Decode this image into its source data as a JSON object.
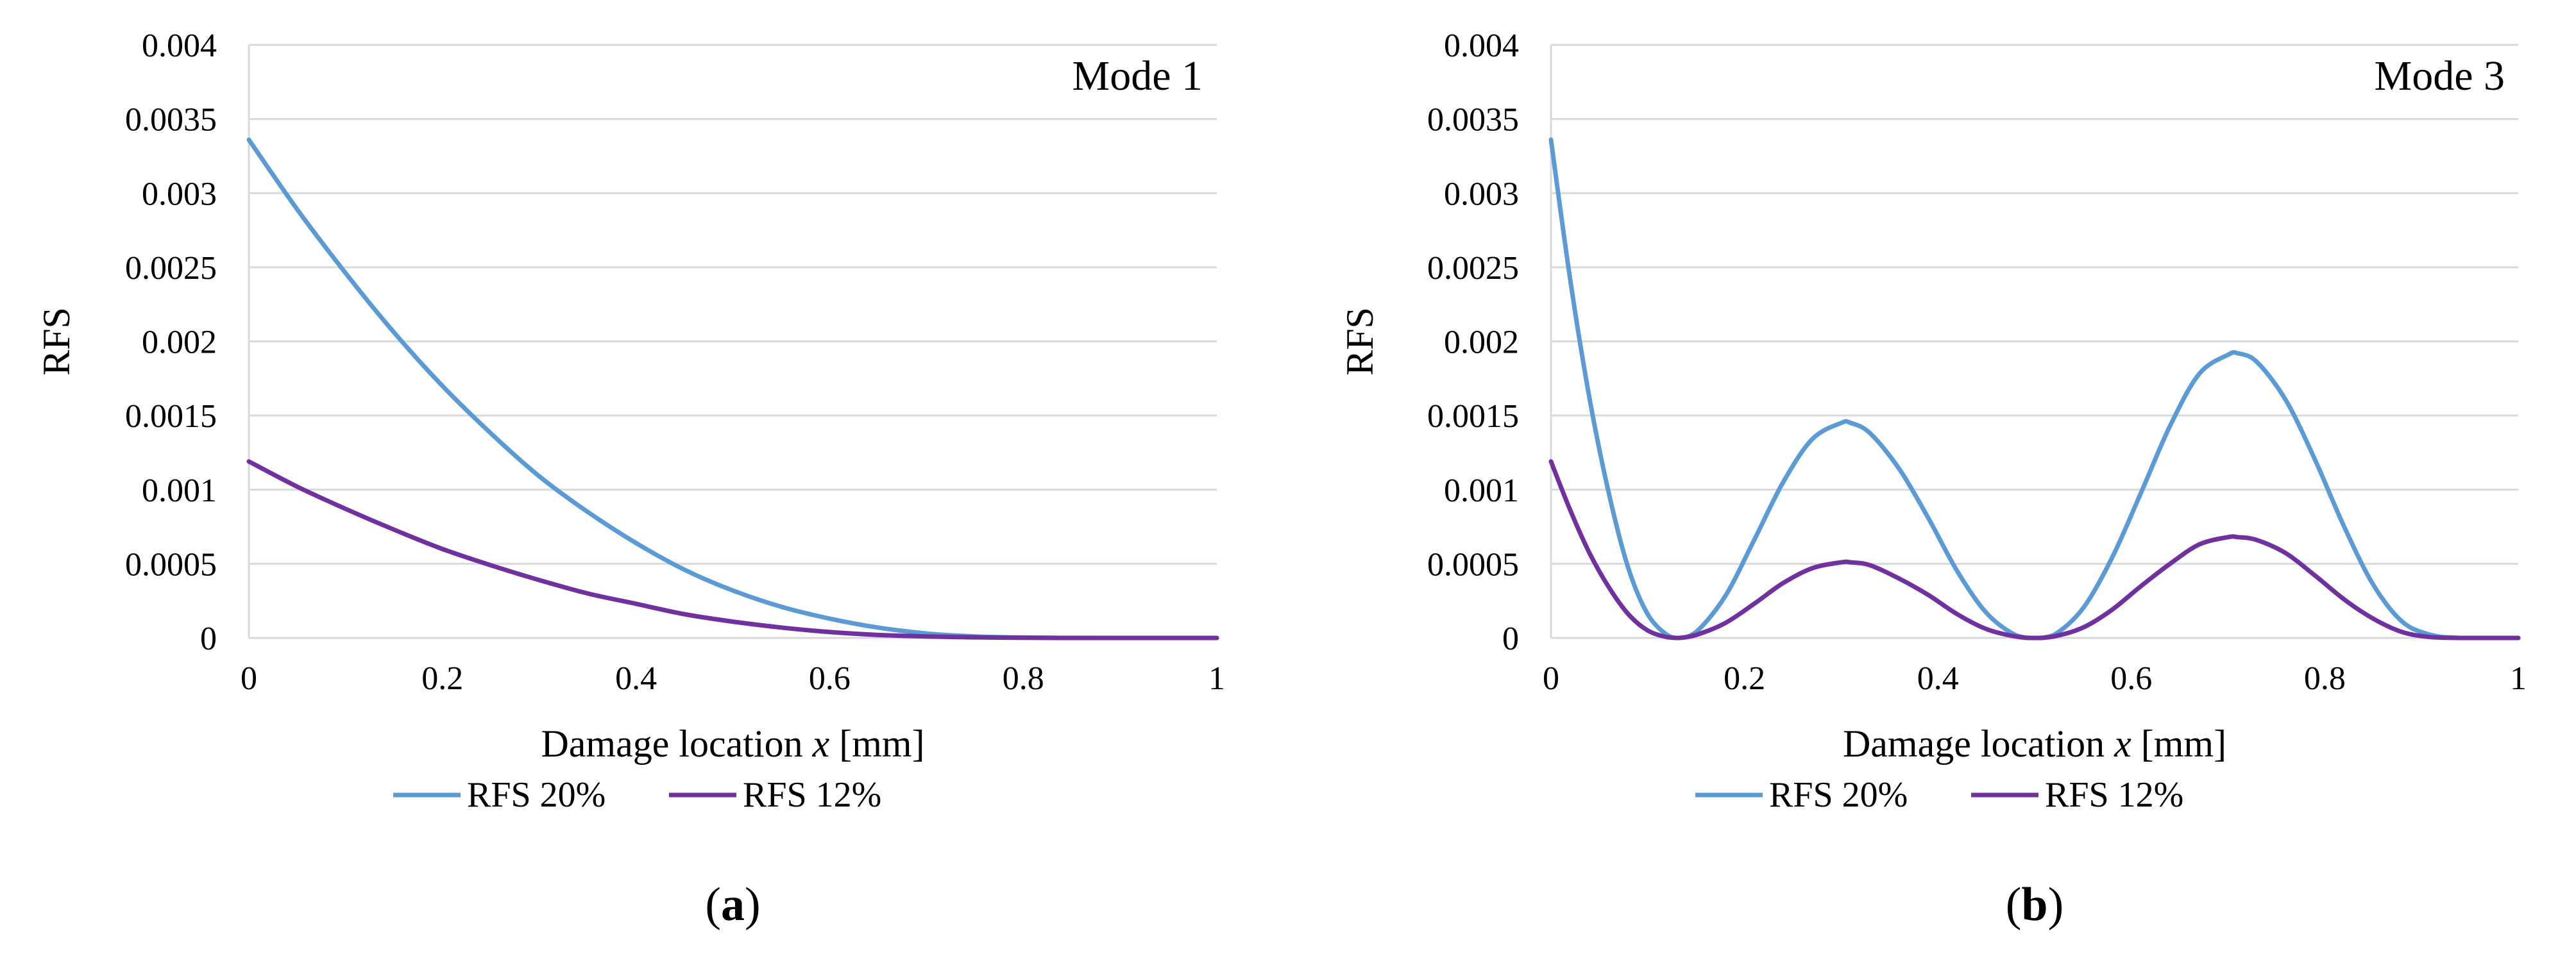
{
  "chart_data": [
    {
      "type": "line",
      "panel_label_open": "(",
      "panel_label_letter": "a",
      "panel_label_close": ")",
      "annotation": "Mode 1",
      "xlabel_prefix": "Damage location ",
      "xlabel_var": "x",
      "xlabel_unit": " [mm]",
      "ylabel": "RFS",
      "xlim": [
        0,
        1
      ],
      "ylim": [
        0,
        0.004
      ],
      "x_ticks": [
        0,
        0.2,
        0.4,
        0.6,
        0.8,
        1
      ],
      "x_tick_labels": [
        "0",
        "0.2",
        "0.4",
        "0.6",
        "0.8",
        "1"
      ],
      "y_ticks": [
        0,
        0.0005,
        0.001,
        0.0015,
        0.002,
        0.0025,
        0.003,
        0.0035,
        0.004
      ],
      "y_tick_labels": [
        "0",
        "0.0005",
        "0.001",
        "0.0015",
        "0.002",
        "0.0025",
        "0.003",
        "0.0035",
        "0.004"
      ],
      "grid": true,
      "legend_position": "bottom",
      "x": [
        0,
        0.05,
        0.1,
        0.15,
        0.2,
        0.25,
        0.3,
        0.35,
        0.4,
        0.45,
        0.5,
        0.55,
        0.6,
        0.65,
        0.7,
        0.75,
        0.8,
        0.85,
        0.9,
        0.95,
        1
      ],
      "series": [
        {
          "name": "RFS 20%",
          "color": "#5b9bd5",
          "values": [
            0.00336,
            0.00289,
            0.00246,
            0.00206,
            0.0017,
            0.00138,
            0.00109,
            0.00085,
            0.00064,
            0.00046,
            0.00032,
            0.00021,
            0.00013,
            7e-05,
            3e-05,
            1e-05,
            2.4e-06,
            3e-07,
            0.0,
            0.0,
            0.0
          ]
        },
        {
          "name": "RFS 12%",
          "color": "#7030a0",
          "values": [
            0.00119,
            0.00102,
            0.00087,
            0.00073,
            0.0006,
            0.00049,
            0.00039,
            0.0003,
            0.00023,
            0.00016,
            0.00011,
            7e-05,
            4e-05,
            2e-05,
            1e-05,
            4e-06,
            1e-06,
            1e-07,
            0.0,
            0.0,
            0.0
          ]
        }
      ]
    },
    {
      "type": "line",
      "panel_label_open": "(",
      "panel_label_letter": "b",
      "panel_label_close": ")",
      "annotation": "Mode 3",
      "xlabel_prefix": "Damage location ",
      "xlabel_var": "x",
      "xlabel_unit": " [mm]",
      "ylabel": "RFS",
      "xlim": [
        0,
        1
      ],
      "ylim": [
        0,
        0.004
      ],
      "x_ticks": [
        0,
        0.2,
        0.4,
        0.6,
        0.8,
        1
      ],
      "x_tick_labels": [
        "0",
        "0.2",
        "0.4",
        "0.6",
        "0.8",
        "1"
      ],
      "y_ticks": [
        0,
        0.0005,
        0.001,
        0.0015,
        0.002,
        0.0025,
        0.003,
        0.0035,
        0.004
      ],
      "y_tick_labels": [
        "0",
        "0.0005",
        "0.001",
        "0.0015",
        "0.002",
        "0.0025",
        "0.003",
        "0.0035",
        "0.004"
      ],
      "grid": true,
      "legend_position": "bottom",
      "x": [
        0,
        0.02,
        0.04,
        0.06,
        0.08,
        0.1,
        0.12,
        0.132,
        0.15,
        0.18,
        0.21,
        0.24,
        0.27,
        0.3,
        0.31,
        0.33,
        0.36,
        0.39,
        0.42,
        0.45,
        0.48,
        0.5,
        0.52,
        0.55,
        0.58,
        0.61,
        0.64,
        0.67,
        0.7,
        0.71,
        0.73,
        0.76,
        0.79,
        0.82,
        0.85,
        0.88,
        0.91,
        0.94,
        0.97,
        1
      ],
      "series": [
        {
          "name": "RFS 20%",
          "color": "#5b9bd5",
          "values": [
            0.00336,
            0.00241,
            0.00161,
            0.00097,
            0.00047,
            0.00016,
            2e-05,
            0.0,
            4e-05,
            0.00028,
            0.00066,
            0.00105,
            0.00134,
            0.00145,
            0.00145,
            0.00138,
            0.00114,
            0.00081,
            0.00045,
            0.00017,
            2e-05,
            0.0,
            2e-05,
            0.0002,
            0.00054,
            0.00098,
            0.00143,
            0.00178,
            0.00191,
            0.00192,
            0.00186,
            0.0016,
            0.0012,
            0.00075,
            0.00036,
            0.00011,
            2e-05,
            0.0,
            0.0,
            0.0
          ]
        },
        {
          "name": "RFS 12%",
          "color": "#7030a0",
          "values": [
            0.00119,
            0.00086,
            0.00057,
            0.00034,
            0.00016,
            5e-05,
            5e-06,
            0.0,
            2e-05,
            0.0001,
            0.00023,
            0.00037,
            0.00047,
            0.00051,
            0.00051,
            0.00049,
            0.0004,
            0.00029,
            0.00016,
            6e-05,
            1e-05,
            0.0,
            1e-05,
            7e-05,
            0.00019,
            0.00035,
            0.0005,
            0.00063,
            0.00068,
            0.00068,
            0.00066,
            0.00057,
            0.00042,
            0.00026,
            0.00013,
            4e-05,
            5e-06,
            0.0,
            0.0,
            0.0
          ]
        }
      ]
    }
  ]
}
